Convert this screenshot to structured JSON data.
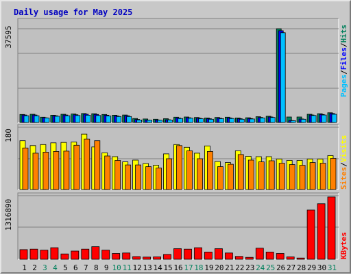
{
  "title": "Daily usage for May 2025",
  "colors": {
    "title": "#0000c0",
    "hits": "#00805c",
    "files": "#0000ff",
    "pages": "#00c0ff",
    "visits": "#ffff00",
    "sites": "#ff8000",
    "kbytes": "#ff0000",
    "weekend_day": "#00805c",
    "weekday": "#000000",
    "plot_bg": "#c0c0c0",
    "grid": "#808080"
  },
  "legend": {
    "hits_files_pages": {
      "pages": "Pages",
      "slash1": "/",
      "files": "Files",
      "slash2": "/",
      "hits": "Hits"
    },
    "visits_sites": {
      "sites": "Sites",
      "slash": "/",
      "visits": "Visits"
    },
    "kbytes": {
      "kbytes": "KBytes"
    }
  },
  "chart_data": [
    {
      "type": "bar",
      "panel": "hits_files_pages",
      "categories": [
        "1",
        "2",
        "3",
        "4",
        "5",
        "6",
        "7",
        "8",
        "9",
        "10",
        "11",
        "12",
        "13",
        "14",
        "15",
        "16",
        "17",
        "18",
        "19",
        "20",
        "21",
        "22",
        "23",
        "24",
        "25",
        "26",
        "27",
        "28",
        "29",
        "30",
        "31"
      ],
      "weekend_days": [
        "3",
        "4",
        "10",
        "11",
        "17",
        "18",
        "24",
        "25",
        "31"
      ],
      "ytick": "37595",
      "ylim": [
        0,
        37595
      ],
      "series": [
        {
          "name": "Hits",
          "values": [
            3200,
            3300,
            2100,
            2900,
            3300,
            3400,
            3600,
            3500,
            3200,
            2900,
            3000,
            1600,
            1400,
            1300,
            1500,
            2100,
            2200,
            2000,
            1800,
            2000,
            2100,
            1800,
            1900,
            2300,
            2500,
            37595,
            2200,
            2200,
            3300,
            3500,
            3900
          ]
        },
        {
          "name": "Files",
          "values": [
            3000,
            3000,
            1900,
            2700,
            3000,
            3100,
            3300,
            3200,
            2900,
            2600,
            2700,
            1200,
            1000,
            1000,
            1100,
            1800,
            1900,
            1700,
            1500,
            1700,
            1800,
            1500,
            1600,
            2000,
            2200,
            36800,
            800,
            1400,
            3000,
            3200,
            3600
          ]
        },
        {
          "name": "Pages",
          "values": [
            2700,
            2700,
            1800,
            2500,
            2700,
            2800,
            2900,
            2800,
            2600,
            2400,
            2400,
            1000,
            900,
            900,
            1000,
            1600,
            1700,
            1500,
            1300,
            1500,
            1600,
            1300,
            1400,
            1800,
            2000,
            36000,
            700,
            1300,
            2800,
            3000,
            3300
          ]
        }
      ]
    },
    {
      "type": "bar",
      "panel": "visits_sites",
      "categories": [
        "1",
        "2",
        "3",
        "4",
        "5",
        "6",
        "7",
        "8",
        "9",
        "10",
        "11",
        "12",
        "13",
        "14",
        "15",
        "16",
        "17",
        "18",
        "19",
        "20",
        "21",
        "22",
        "23",
        "24",
        "25",
        "26",
        "27",
        "28",
        "29",
        "30",
        "31"
      ],
      "ytick": "180",
      "ylim": [
        0,
        180
      ],
      "series": [
        {
          "name": "Visits",
          "values": [
            141,
            127,
            130,
            135,
            136,
            137,
            160,
            123,
            106,
            95,
            80,
            85,
            75,
            70,
            103,
            130,
            122,
            105,
            126,
            81,
            78,
            112,
            96,
            95,
            95,
            88,
            84,
            84,
            88,
            88,
            98
          ]
        },
        {
          "name": "Sites",
          "values": [
            120,
            105,
            108,
            110,
            111,
            128,
            146,
            141,
            97,
            84,
            71,
            71,
            66,
            62,
            89,
            127,
            112,
            89,
            110,
            66,
            73,
            101,
            85,
            80,
            83,
            76,
            72,
            70,
            78,
            76,
            90
          ]
        }
      ]
    },
    {
      "type": "bar",
      "panel": "kbytes",
      "categories": [
        "1",
        "2",
        "3",
        "4",
        "5",
        "6",
        "7",
        "8",
        "9",
        "10",
        "11",
        "12",
        "13",
        "14",
        "15",
        "16",
        "17",
        "18",
        "19",
        "20",
        "21",
        "22",
        "23",
        "24",
        "25",
        "26",
        "27",
        "28",
        "29",
        "30",
        "31"
      ],
      "ytick": "1316890",
      "ylim": [
        0,
        1316890
      ],
      "series": [
        {
          "name": "KBytes",
          "values": [
            200000,
            210000,
            190000,
            240000,
            110000,
            170000,
            210000,
            260000,
            190000,
            120000,
            130000,
            55000,
            45000,
            50000,
            100000,
            220000,
            210000,
            240000,
            150000,
            220000,
            130000,
            60000,
            40000,
            230000,
            150000,
            120000,
            50000,
            25000,
            1020000,
            1150000,
            1290000
          ]
        }
      ]
    }
  ]
}
